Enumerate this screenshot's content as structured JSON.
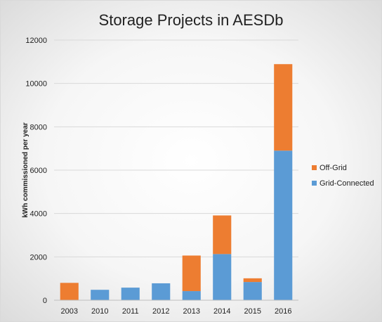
{
  "chart_data": {
    "type": "bar",
    "stacked": true,
    "title": "Storage Projects in AESDb",
    "xlabel": "",
    "ylabel": "kWh commissioned per year",
    "ylim": [
      0,
      12000
    ],
    "yticks": [
      0,
      2000,
      4000,
      6000,
      8000,
      10000,
      12000
    ],
    "categories": [
      "2003",
      "2010",
      "2011",
      "2012",
      "2013",
      "2014",
      "2015",
      "2016"
    ],
    "series": [
      {
        "name": "Grid-Connected",
        "color": "#5b9bd5",
        "values": [
          0,
          480,
          580,
          780,
          420,
          2130,
          840,
          6900
        ]
      },
      {
        "name": "Off-Grid",
        "color": "#ed7d31",
        "values": [
          800,
          0,
          0,
          0,
          1640,
          1780,
          170,
          3990
        ]
      }
    ],
    "grid": true,
    "legend": "right"
  }
}
